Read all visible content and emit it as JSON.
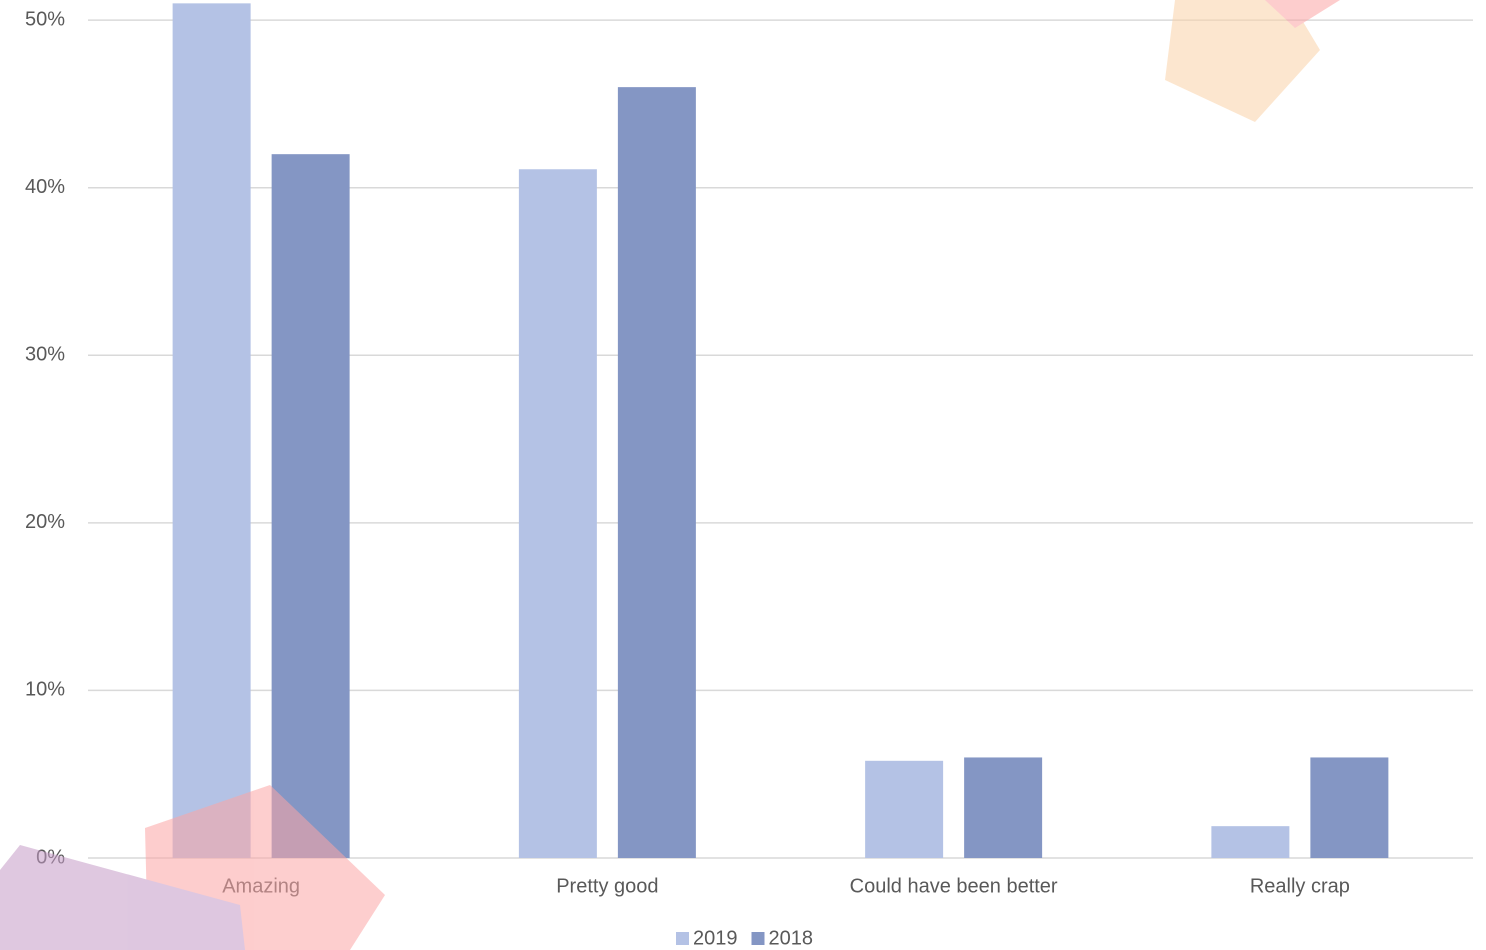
{
  "chart_data": {
    "type": "bar",
    "categories": [
      "Amazing",
      "Pretty good",
      "Could have been better",
      "Really crap"
    ],
    "series": [
      {
        "name": "2019",
        "color": "#b4c2e5",
        "values": [
          51,
          41.1,
          5.8,
          1.9
        ]
      },
      {
        "name": "2018",
        "color": "#8496c4",
        "values": [
          42,
          46,
          6,
          6
        ]
      }
    ],
    "ylim": [
      0,
      51.2
    ],
    "yticks": [
      {
        "value": 0,
        "label": "0%"
      },
      {
        "value": 10,
        "label": "10%"
      },
      {
        "value": 20,
        "label": "20%"
      },
      {
        "value": 30,
        "label": "30%"
      },
      {
        "value": 40,
        "label": "40%"
      },
      {
        "value": 50,
        "label": "50%"
      }
    ],
    "grid": true,
    "legend": "bottom"
  }
}
